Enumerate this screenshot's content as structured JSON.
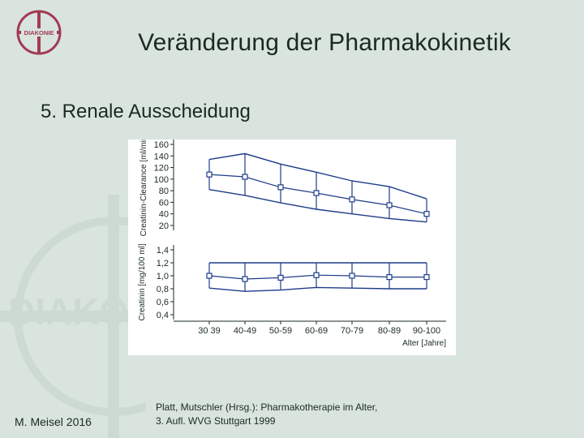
{
  "slide": {
    "title": "Veränderung der Pharmakokinetik",
    "subtitle": "5. Renale Ausscheidung",
    "author": "M. Meisel 2016",
    "source_line1": "Platt, Mutschler (Hrsg.): Pharmakotherapie im Alter,",
    "source_line2": "3. Aufl. WVG Stuttgart 1999",
    "logo_text": "DIAKONIE",
    "watermark_text": "DIAKO"
  },
  "colors": {
    "background": "#d9e4de",
    "line": "#1f3c8a",
    "text": "#1a2a20"
  },
  "chart_data": [
    {
      "type": "line",
      "title": "",
      "xlabel": "Alter [Jahre]",
      "ylabel": "Creatinin-Clearance [ml/min]",
      "categories": [
        "30-39",
        "40-49",
        "50-59",
        "60-69",
        "70-79",
        "80-89",
        "90-100"
      ],
      "x_tick_labels": [
        "30 39",
        "40-49",
        "50-59",
        "60-69",
        "70-79",
        "80-89",
        "90-100"
      ],
      "yticks": [
        20,
        40,
        60,
        80,
        100,
        120,
        140,
        160
      ],
      "ylim": [
        20,
        160
      ],
      "series": [
        {
          "values": [
            108,
            104,
            86,
            76,
            65,
            55,
            40
          ]
        },
        {
          "values": [
            134,
            144,
            126,
            112,
            97,
            87,
            66
          ]
        },
        {
          "values": [
            82,
            72,
            59,
            48,
            40,
            32,
            26
          ]
        }
      ],
      "grid": false
    },
    {
      "type": "line",
      "title": "",
      "xlabel": "Alter [Jahre]",
      "ylabel": "Creatinin [mg/100 ml]",
      "categories": [
        "30-39",
        "40-49",
        "50-59",
        "60-69",
        "70-79",
        "80-89",
        "90-100"
      ],
      "yticks": [
        "0,4",
        "0,6",
        "0,8",
        "1,0",
        "1,2",
        "1,4"
      ],
      "ylim": [
        0.4,
        1.4
      ],
      "series": [
        {
          "values": [
            1.0,
            0.95,
            0.97,
            1.01,
            1.0,
            0.98,
            0.98
          ]
        },
        {
          "values": [
            1.2,
            1.2,
            1.2,
            1.2,
            1.2,
            1.2,
            1.2
          ]
        },
        {
          "values": [
            0.81,
            0.76,
            0.78,
            0.82,
            0.81,
            0.8,
            0.8
          ]
        }
      ],
      "grid": false
    }
  ]
}
